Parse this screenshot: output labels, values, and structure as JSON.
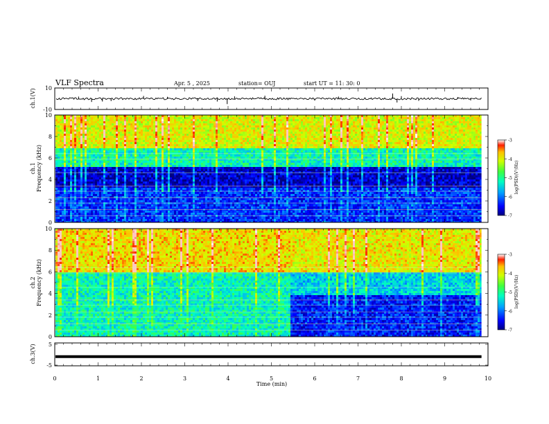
{
  "header": {
    "title": "VLF Spectra",
    "date": "Apr. 5 , 2025",
    "station": "station= OUJ",
    "start_ut": "start UT = 11: 30: 0"
  },
  "chart_data": [
    {
      "type": "line",
      "name": "ch1-waveform",
      "ylabel": "ch.1(V)",
      "ylim": [
        -10,
        10
      ],
      "yticks": [
        "10",
        "-10"
      ],
      "x": [
        0,
        0.55,
        0.85,
        1.1,
        1.3,
        2.05,
        2.6,
        3.3,
        3.75,
        3.98,
        4.15,
        4.85,
        6.0,
        6.55,
        7.8,
        7.9,
        8.0,
        8.4,
        9.3,
        9.6
      ],
      "spikes": [
        -2.5,
        2.0,
        -3.0,
        -2.6,
        -2.2,
        2.6,
        1.8,
        -2.2,
        -2.6,
        -5.0,
        2.2,
        2.8,
        -1.8,
        2.0,
        4.8,
        -3.5,
        2.4,
        -2.0,
        1.6,
        -1.6
      ],
      "baseline": 0
    },
    {
      "type": "heatmap",
      "name": "ch1-spectrogram",
      "ylabel": "ch.1\nFrequency (kHz)",
      "ylim": [
        0,
        10
      ],
      "yticks": [
        "0",
        "2",
        "4",
        "6",
        "8",
        "10"
      ],
      "colorbar": {
        "label": "log(PSD)(V²/Hz)",
        "range": [
          -7,
          -3
        ],
        "ticks": [
          "-3",
          "-4",
          "-5",
          "-6",
          "-7"
        ]
      },
      "bands_khz": [
        {
          "from": 7.0,
          "to": 10.0,
          "level": -4.0
        },
        {
          "from": 5.3,
          "to": 7.0,
          "level": -5.2
        },
        {
          "from": 3.3,
          "to": 5.3,
          "level": -6.7
        },
        {
          "from": 0.0,
          "to": 3.3,
          "level": -6.3
        }
      ]
    },
    {
      "type": "heatmap",
      "name": "ch2-spectrogram",
      "ylabel": "ch.2\nFrequency (kHz)",
      "ylim": [
        0,
        10
      ],
      "yticks": [
        "0",
        "2",
        "4",
        "6",
        "8",
        "10"
      ],
      "colorbar": {
        "label": "log(PSD)(V²/Hz)",
        "range": [
          -7,
          -3
        ],
        "ticks": [
          "-3",
          "-4",
          "-5",
          "-6",
          "-7"
        ]
      },
      "regime_change_min": 5.4,
      "bands_before_khz": [
        {
          "from": 6.0,
          "to": 10.0,
          "level": -3.8
        },
        {
          "from": 0.0,
          "to": 6.0,
          "level": -5.2
        }
      ],
      "bands_after_khz": [
        {
          "from": 6.0,
          "to": 10.0,
          "level": -3.9
        },
        {
          "from": 4.0,
          "to": 6.0,
          "level": -5.5
        },
        {
          "from": 0.0,
          "to": 4.0,
          "level": -6.4
        }
      ]
    },
    {
      "type": "line",
      "name": "ch3-waveform",
      "ylabel": "ch.3(V)",
      "ylim": [
        -5,
        5
      ],
      "yticks": [
        "5",
        "-5"
      ],
      "baseline": -1
    }
  ],
  "xaxis": {
    "label": "Time (min)",
    "range": [
      0,
      10
    ],
    "ticks": [
      "0",
      "1",
      "2",
      "3",
      "4",
      "5",
      "6",
      "7",
      "8",
      "9",
      "10"
    ],
    "data_end_min": 9.85
  }
}
